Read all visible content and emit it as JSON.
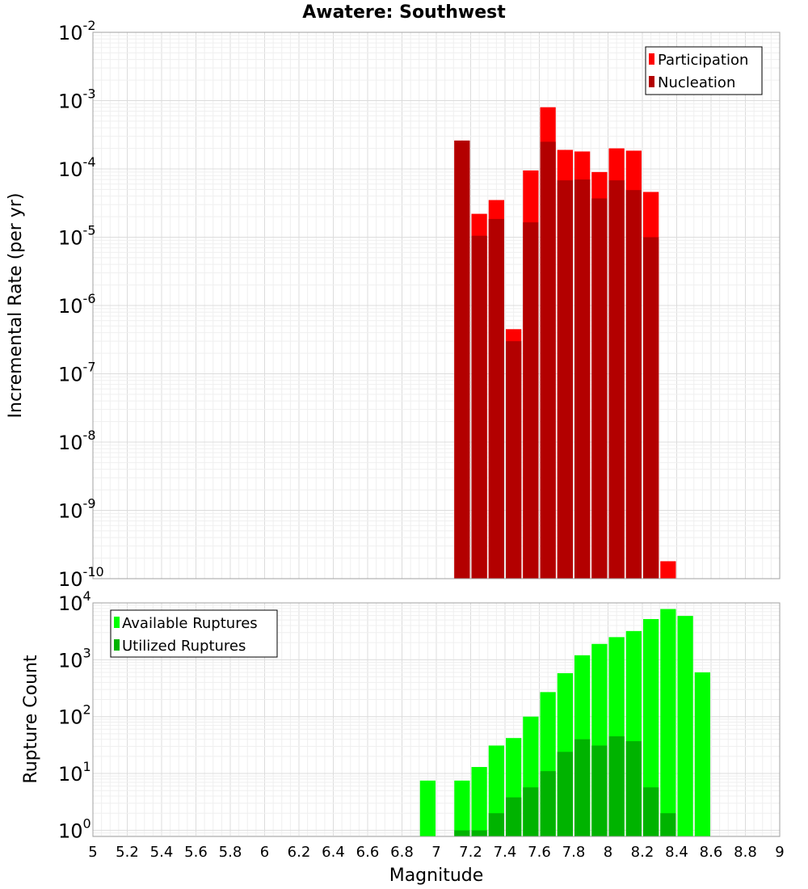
{
  "chart_data": {
    "title": "Awatere: Southwest",
    "xlabel": "Magnitude",
    "xlim": [
      5,
      9
    ],
    "xticks": [
      "5",
      "5.2",
      "5.4",
      "5.6",
      "5.8",
      "6",
      "6.2",
      "6.4",
      "6.6",
      "6.8",
      "7",
      "7.2",
      "7.4",
      "7.6",
      "7.8",
      "8",
      "8.2",
      "8.4",
      "8.6",
      "8.8",
      "9"
    ],
    "bar_width": 0.1,
    "panels": [
      {
        "type": "bar",
        "scale": "log",
        "ylabel": "Incremental Rate (per yr)",
        "ylim": [
          1e-10,
          0.01
        ],
        "yticks": [
          {
            "base": "10",
            "exp": "-10"
          },
          {
            "base": "10",
            "exp": "-9"
          },
          {
            "base": "10",
            "exp": "-8"
          },
          {
            "base": "10",
            "exp": "-7"
          },
          {
            "base": "10",
            "exp": "-6"
          },
          {
            "base": "10",
            "exp": "-5"
          },
          {
            "base": "10",
            "exp": "-4"
          },
          {
            "base": "10",
            "exp": "-3"
          },
          {
            "base": "10",
            "exp": "-2"
          }
        ],
        "legend": [
          {
            "name": "Participation",
            "color": "#ff0000"
          },
          {
            "name": "Nucleation",
            "color": "#b30000"
          }
        ],
        "series": [
          {
            "name": "Participation",
            "color": "#ff0000",
            "x": [
              7.15,
              7.25,
              7.35,
              7.45,
              7.55,
              7.65,
              7.75,
              7.85,
              7.95,
              8.05,
              8.15,
              8.25,
              8.35
            ],
            "values": [
              0.00026,
              2.2e-05,
              3.5e-05,
              4.5e-07,
              9.5e-05,
              0.0008,
              0.00019,
              0.00018,
              9e-05,
              0.0002,
              0.000185,
              4.6e-05,
              1.8e-10
            ]
          },
          {
            "name": "Nucleation",
            "color": "#b30000",
            "x": [
              7.15,
              7.25,
              7.35,
              7.45,
              7.55,
              7.65,
              7.75,
              7.85,
              7.95,
              8.05,
              8.15,
              8.25
            ],
            "values": [
              0.00026,
              1.05e-05,
              1.85e-05,
              3e-07,
              1.65e-05,
              0.00025,
              6.8e-05,
              7e-05,
              3.7e-05,
              6.8e-05,
              4.9e-05,
              1e-05
            ]
          }
        ]
      },
      {
        "type": "bar",
        "scale": "log",
        "ylabel": "Rupture Count",
        "ylim": [
          0.78,
          10000
        ],
        "yticks": [
          {
            "base": "10",
            "exp": "0"
          },
          {
            "base": "10",
            "exp": "1"
          },
          {
            "base": "10",
            "exp": "2"
          },
          {
            "base": "10",
            "exp": "3"
          },
          {
            "base": "10",
            "exp": "4"
          }
        ],
        "legend": [
          {
            "name": "Available Ruptures",
            "color": "#00ff00"
          },
          {
            "name": "Utilized Ruptures",
            "color": "#00b300"
          }
        ],
        "series": [
          {
            "name": "Available Ruptures",
            "color": "#00ff00",
            "x": [
              6.95,
              7.15,
              7.25,
              7.35,
              7.45,
              7.55,
              7.65,
              7.75,
              7.85,
              7.95,
              8.05,
              8.15,
              8.25,
              8.35,
              8.45,
              8.55
            ],
            "values": [
              7.5,
              7.5,
              13,
              31,
              42,
              100,
              270,
              580,
              1200,
              1900,
              2500,
              3200,
              5200,
              7800,
              5900,
              600
            ]
          },
          {
            "name": "Utilized Ruptures",
            "color": "#00b300",
            "x": [
              7.15,
              7.25,
              7.35,
              7.45,
              7.55,
              7.65,
              7.75,
              7.85,
              7.95,
              8.05,
              8.15,
              8.25,
              8.35
            ],
            "values": [
              1,
              1,
              2,
              3.8,
              5.7,
              11,
              24,
              40,
              31,
              45,
              37,
              5.7,
              2
            ]
          }
        ]
      }
    ]
  }
}
